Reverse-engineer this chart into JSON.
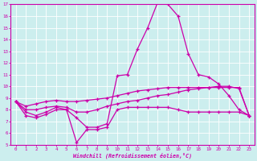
{
  "xlabel": "Windchill (Refroidissement éolien,°C)",
  "xlim": [
    -0.5,
    23.5
  ],
  "ylim": [
    5,
    17
  ],
  "yticks": [
    5,
    6,
    7,
    8,
    9,
    10,
    11,
    12,
    13,
    14,
    15,
    16,
    17
  ],
  "xticks": [
    0,
    1,
    2,
    3,
    4,
    5,
    6,
    7,
    8,
    9,
    10,
    11,
    12,
    13,
    14,
    15,
    16,
    17,
    18,
    19,
    20,
    21,
    22,
    23
  ],
  "line_color": "#cc00aa",
  "bg_color": "#cceeee",
  "grid_color": "#bbdddd",
  "lines": [
    [
      8.7,
      7.5,
      7.3,
      7.6,
      8.0,
      8.0,
      7.3,
      6.5,
      6.5,
      6.8,
      10.9,
      11.0,
      13.2,
      15.0,
      17.2,
      17.0,
      16.0,
      12.8,
      11.0,
      10.8,
      10.2,
      9.2,
      8.0,
      7.5
    ],
    [
      8.7,
      7.8,
      7.5,
      7.8,
      8.2,
      8.0,
      5.2,
      6.3,
      6.3,
      6.5,
      8.0,
      8.2,
      8.2,
      8.2,
      8.2,
      8.2,
      8.0,
      7.8,
      7.8,
      7.8,
      7.8,
      7.8,
      7.8,
      7.5
    ],
    [
      8.7,
      8.0,
      8.0,
      8.2,
      8.3,
      8.2,
      7.8,
      7.8,
      8.0,
      8.3,
      8.5,
      8.7,
      8.8,
      9.0,
      9.2,
      9.3,
      9.5,
      9.7,
      9.8,
      9.9,
      10.0,
      10.0,
      9.8,
      7.5
    ],
    [
      8.7,
      8.3,
      8.5,
      8.7,
      8.8,
      8.7,
      8.7,
      8.8,
      8.9,
      9.0,
      9.2,
      9.4,
      9.6,
      9.7,
      9.8,
      9.9,
      9.9,
      9.9,
      9.9,
      9.9,
      9.9,
      9.9,
      9.9,
      7.5
    ]
  ]
}
